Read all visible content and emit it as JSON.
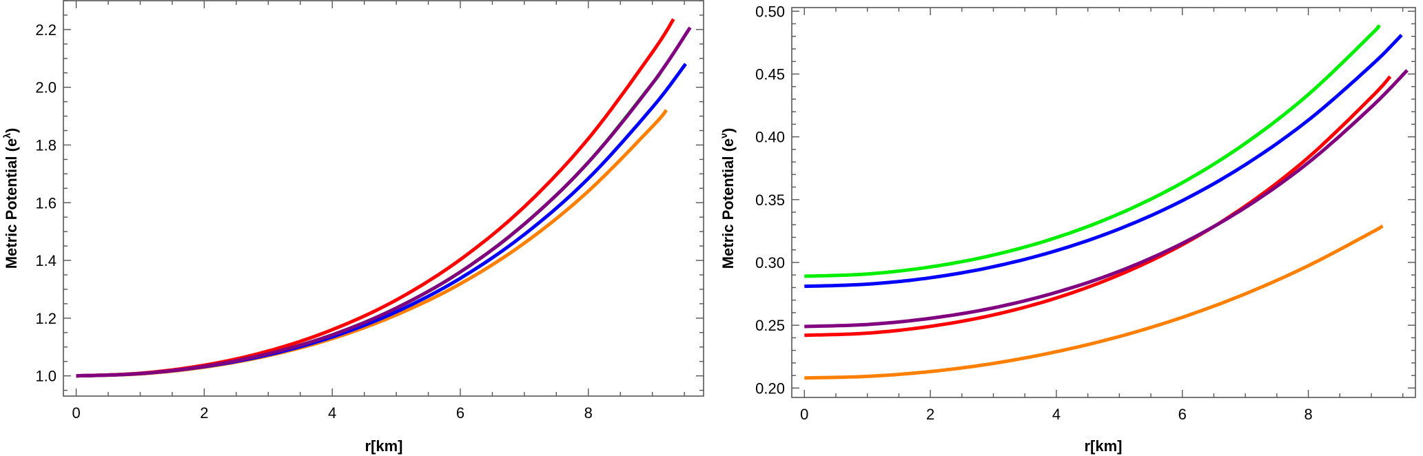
{
  "chart_data": [
    {
      "type": "line",
      "title": "",
      "xlabel": "r[km]",
      "ylabel": "Metric Potential (e",
      "ylabel_superscript": "λ",
      "ylabel_suffix": ")",
      "xlim": [
        -0.2,
        9.8
      ],
      "ylim": [
        0.93,
        2.3
      ],
      "xticks": [
        0,
        2,
        4,
        6,
        8
      ],
      "xtick_labels": [
        "0",
        "2",
        "4",
        "6",
        "8"
      ],
      "x_minor_step": 0.5,
      "yticks": [
        1.0,
        1.2,
        1.4,
        1.6,
        1.8,
        2.0,
        2.2
      ],
      "ytick_labels": [
        "1.0",
        "1.2",
        "1.4",
        "1.6",
        "1.8",
        "2.0",
        "2.2"
      ],
      "y_minor_step": 0.05,
      "grid": false,
      "legend": "none",
      "series": [
        {
          "name": "green",
          "color": "#00ee00",
          "x": [
            0,
            1,
            2,
            3,
            4,
            5,
            6,
            7,
            8,
            9,
            9.1
          ],
          "y": [
            1.0,
            1.008,
            1.033,
            1.077,
            1.142,
            1.235,
            1.36,
            1.526,
            1.74,
            2.013,
            2.044
          ]
        },
        {
          "name": "orange",
          "color": "#ff8000",
          "x": [
            0,
            1,
            2,
            3,
            4,
            5,
            6,
            7,
            8,
            9,
            9.22
          ],
          "y": [
            1.0,
            1.007,
            1.03,
            1.07,
            1.129,
            1.211,
            1.319,
            1.46,
            1.64,
            1.864,
            1.921
          ]
        },
        {
          "name": "blue",
          "color": "#0000ff",
          "x": [
            0,
            1,
            2,
            3,
            4,
            5,
            6,
            7,
            8,
            9,
            9.52
          ],
          "y": [
            1.0,
            1.008,
            1.032,
            1.073,
            1.135,
            1.222,
            1.338,
            1.49,
            1.684,
            1.93,
            2.081
          ]
        },
        {
          "name": "red",
          "color": "#ff0000",
          "x": [
            0,
            1,
            2,
            3,
            4,
            5,
            6,
            7,
            8,
            9,
            9.33
          ],
          "y": [
            1.0,
            1.009,
            1.037,
            1.086,
            1.16,
            1.263,
            1.403,
            1.586,
            1.822,
            2.121,
            2.236
          ]
        },
        {
          "name": "purple",
          "color": "#800080",
          "x": [
            0,
            1,
            2,
            3,
            4,
            5,
            6,
            7,
            8,
            9,
            9.59
          ],
          "y": [
            1.0,
            1.008,
            1.033,
            1.077,
            1.142,
            1.235,
            1.36,
            1.526,
            1.74,
            2.013,
            2.207
          ]
        }
      ]
    },
    {
      "type": "line",
      "title": "",
      "xlabel": "r[km]",
      "ylabel": "Metric Potential (e",
      "ylabel_superscript": "ν",
      "ylabel_suffix": ")",
      "xlim": [
        -0.2,
        9.7
      ],
      "ylim": [
        0.1925,
        0.5029
      ],
      "xticks": [
        0,
        2,
        4,
        6,
        8
      ],
      "xtick_labels": [
        "0",
        "2",
        "4",
        "6",
        "8"
      ],
      "x_minor_step": 0.5,
      "yticks": [
        0.2,
        0.25,
        0.3,
        0.35,
        0.4,
        0.45,
        0.5
      ],
      "ytick_labels": [
        "0.20",
        "0.25",
        "0.30",
        "0.35",
        "0.40",
        "0.45",
        "0.50"
      ],
      "y_minor_step": 0.01,
      "grid": false,
      "legend": "none",
      "series": [
        {
          "name": "green",
          "color": "#00ee00",
          "x": [
            0,
            1,
            2,
            3,
            4,
            5,
            6,
            7,
            8,
            9,
            9.11
          ],
          "y": [
            0.289,
            0.2908,
            0.2964,
            0.3059,
            0.3198,
            0.3388,
            0.3635,
            0.3948,
            0.4337,
            0.4816,
            0.488
          ]
        },
        {
          "name": "blue",
          "color": "#0000ff",
          "x": [
            0,
            1,
            2,
            3,
            4,
            5,
            6,
            7,
            8,
            9,
            9.48
          ],
          "y": [
            0.281,
            0.2827,
            0.2878,
            0.2966,
            0.3094,
            0.3267,
            0.3492,
            0.3778,
            0.4133,
            0.4569,
            0.481
          ]
        },
        {
          "name": "red",
          "color": "#ff0000",
          "x": [
            0,
            1,
            2,
            3,
            4,
            5,
            6,
            7,
            8,
            9,
            9.3
          ],
          "y": [
            0.242,
            0.2437,
            0.2491,
            0.2582,
            0.2717,
            0.2901,
            0.3141,
            0.3449,
            0.3836,
            0.4315,
            0.448
          ]
        },
        {
          "name": "purple",
          "color": "#800080",
          "x": [
            0,
            1,
            2,
            3,
            4,
            5,
            6,
            7,
            8,
            9,
            9.57
          ],
          "y": [
            0.249,
            0.2506,
            0.2555,
            0.2638,
            0.2762,
            0.293,
            0.3152,
            0.3437,
            0.3794,
            0.4237,
            0.453
          ]
        },
        {
          "name": "orange",
          "color": "#ff8000",
          "x": [
            0,
            1,
            2,
            3,
            4,
            5,
            6,
            7,
            8,
            9,
            9.18
          ],
          "y": [
            0.208,
            0.2093,
            0.2131,
            0.2196,
            0.2289,
            0.241,
            0.2563,
            0.275,
            0.2974,
            0.3238,
            0.329
          ]
        }
      ]
    }
  ]
}
